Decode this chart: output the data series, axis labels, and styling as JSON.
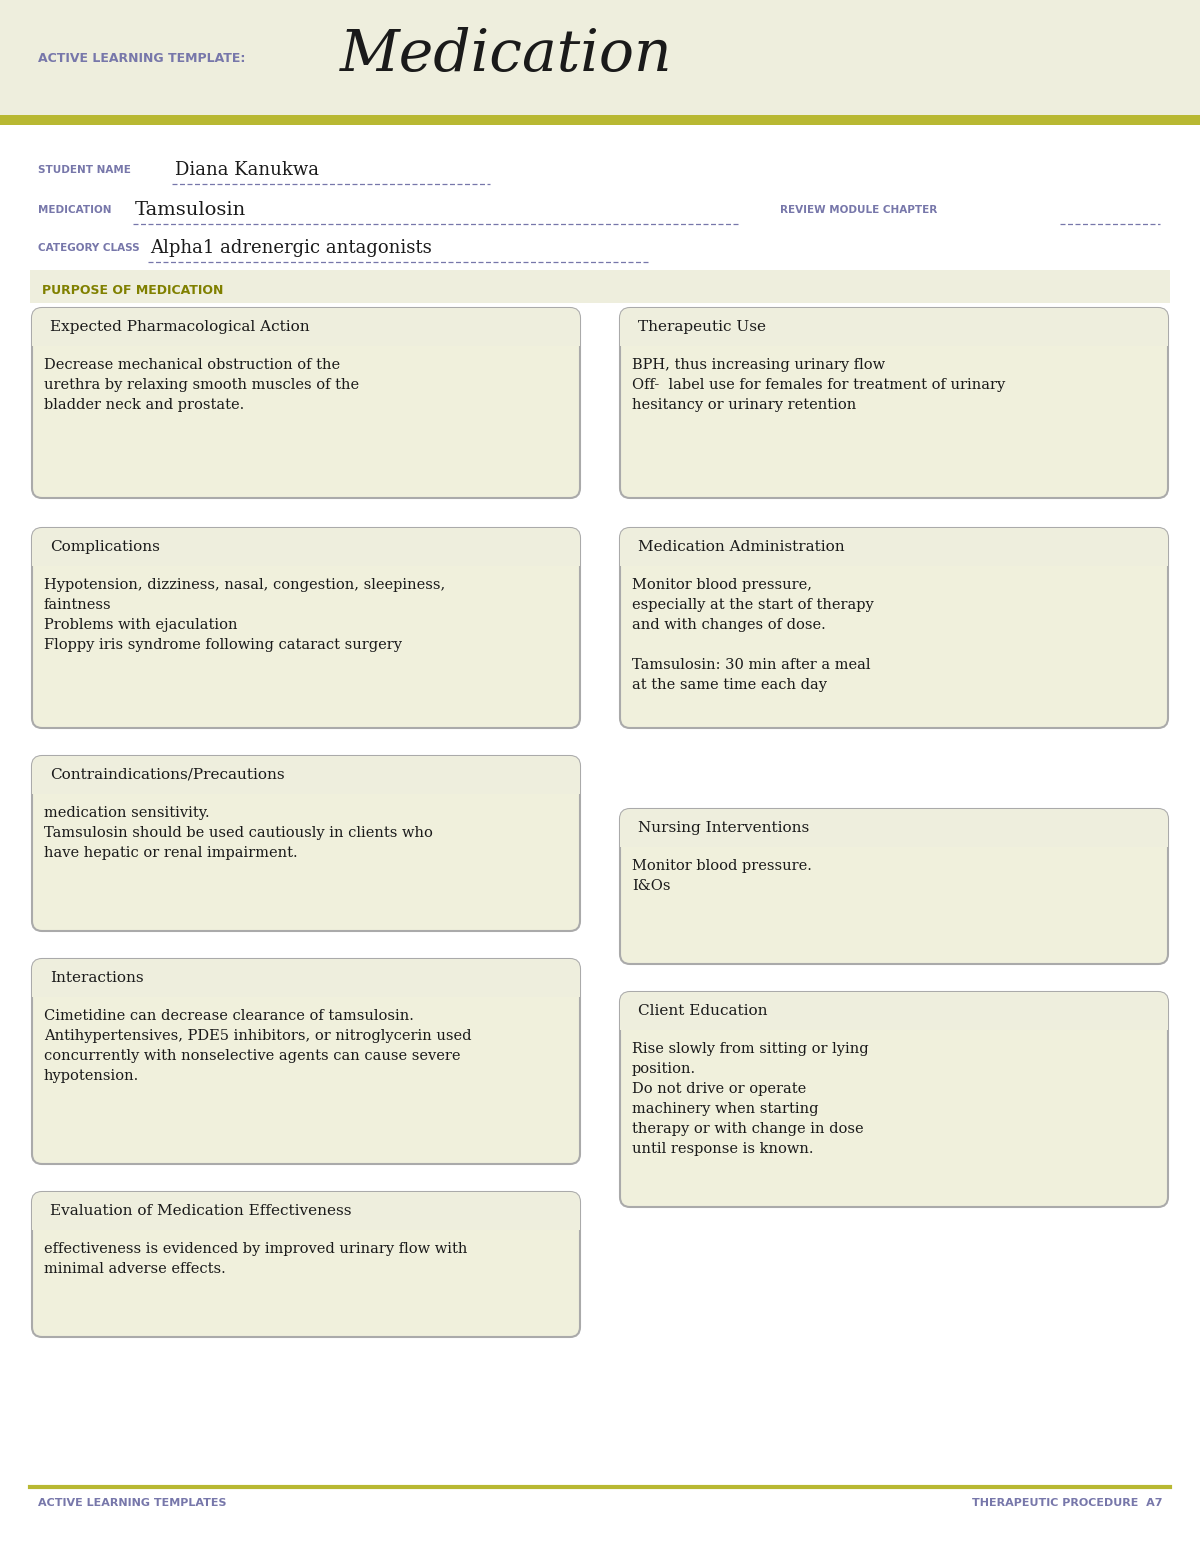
{
  "bg_color": "#f5f5e8",
  "white": "#ffffff",
  "header_bg": "#eeeedd",
  "box_bg": "#f0f0dc",
  "border_color": "#aaaaaa",
  "olive_stripe": "#b8b832",
  "olive_green": "#808000",
  "purple_label": "#7777aa",
  "dark_text": "#1a1a1a",
  "title_label": "ACTIVE LEARNING TEMPLATE:",
  "title_main": "Medication",
  "student_label": "STUDENT NAME",
  "student_name": "Diana Kanukwa",
  "medication_label": "MEDICATION",
  "medication_name": "Tamsulosin",
  "review_label": "REVIEW MODULE CHAPTER",
  "category_label": "CATEGORY CLASS",
  "category_name": "Alpha1 adrenergic antagonists",
  "purpose_label": "PURPOSE OF MEDICATION",
  "box1_title": "Expected Pharmacological Action",
  "box1_content": "Decrease mechanical obstruction of the\nurethra by relaxing smooth muscles of the\nbladder neck and prostate.",
  "box2_title": "Therapeutic Use",
  "box2_content": "BPH, thus increasing urinary flow\nOff-  label use for females for treatment of urinary\nhesitancy or urinary retention",
  "box3_title": "Complications",
  "box3_content": "Hypotension, dizziness, nasal, congestion, sleepiness,\nfaintness\nProblems with ejaculation\nFloppy iris syndrome following cataract surgery",
  "box4_title": "Medication Administration",
  "box4_content": "Monitor blood pressure,\nespecially at the start of therapy\nand with changes of dose.\n\nTamsulosin: 30 min after a meal\nat the same time each day",
  "box5_title": "Contraindications/Precautions",
  "box5_content": "medication sensitivity.\nTamsulosin should be used cautiously in clients who\nhave hepatic or renal impairment.",
  "box6_title": "Nursing Interventions",
  "box6_content": "Monitor blood pressure.\nI&Os",
  "box7_title": "Interactions",
  "box7_content": "Cimetidine can decrease clearance of tamsulosin.\nAntihypertensives, PDE5 inhibitors, or nitroglycerin used\nconcurrently with nonselective agents can cause severe\nhypotension.",
  "box8_title": "Client Education",
  "box8_content": "Rise slowly from sitting or lying\nposition.\nDo not drive or operate\nmachinery when starting\ntherapy or with change in dose\nuntil response is known.",
  "box9_title": "Evaluation of Medication Effectiveness",
  "box9_content": "effectiveness is evidenced by improved urinary flow with\nminimal adverse effects.",
  "footer_left": "ACTIVE LEARNING TEMPLATES",
  "footer_right": "THERAPEUTIC PROCEDURE  A7"
}
